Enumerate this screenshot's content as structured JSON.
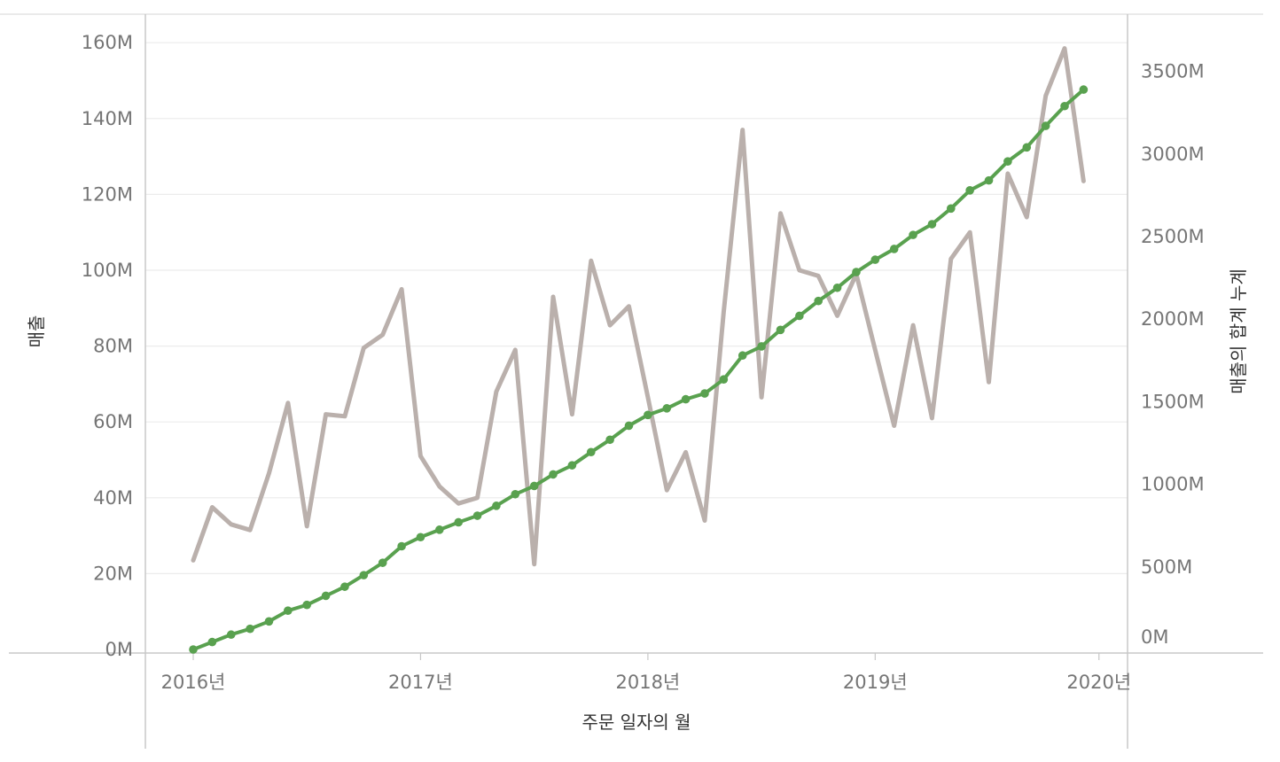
{
  "chart_data": {
    "type": "line",
    "x_axis": {
      "title": "주문 일자의 월",
      "tick_labels": [
        "2016년",
        "2017년",
        "2018년",
        "2019년",
        "2020년"
      ]
    },
    "y_axis_left": {
      "title": "매출",
      "range": [
        0,
        160
      ],
      "ticks": [
        0,
        20,
        40,
        60,
        80,
        100,
        120,
        140,
        160
      ],
      "tick_labels": [
        "0M",
        "20M",
        "40M",
        "60M",
        "80M",
        "100M",
        "120M",
        "140M",
        "160M"
      ]
    },
    "y_axis_right": {
      "title": "매출의 합계 누계",
      "range": [
        0,
        3500
      ],
      "ticks": [
        0,
        500,
        1000,
        1500,
        2000,
        2500,
        3000,
        3500
      ],
      "tick_labels": [
        "0M",
        "500M",
        "1000M",
        "1500M",
        "2000M",
        "2500M",
        "3000M",
        "3500M"
      ]
    },
    "grid": true,
    "x": [
      "2016-01",
      "2016-02",
      "2016-03",
      "2016-04",
      "2016-05",
      "2016-06",
      "2016-07",
      "2016-08",
      "2016-09",
      "2016-10",
      "2016-11",
      "2016-12",
      "2017-01",
      "2017-02",
      "2017-03",
      "2017-04",
      "2017-05",
      "2017-06",
      "2017-07",
      "2017-08",
      "2017-09",
      "2017-10",
      "2017-11",
      "2017-12",
      "2018-01",
      "2018-02",
      "2018-03",
      "2018-04",
      "2018-05",
      "2018-06",
      "2018-07",
      "2018-08",
      "2018-09",
      "2018-10",
      "2018-11",
      "2018-12",
      "2019-01",
      "2019-02",
      "2019-03",
      "2019-04",
      "2019-05",
      "2019-06",
      "2019-07",
      "2019-08",
      "2019-09",
      "2019-10",
      "2019-11",
      "2019-12"
    ],
    "series": [
      {
        "axis": "left",
        "color": "#bab0ac",
        "values": [
          23.5,
          37.5,
          33,
          31.5,
          46.5,
          65,
          32.5,
          62,
          61.5,
          79.5,
          83,
          95,
          51,
          43,
          38.5,
          40,
          68,
          79,
          22.5,
          93,
          62,
          102.5,
          85.5,
          90.5,
          66.5,
          42,
          52,
          34,
          89,
          137,
          66.5,
          115,
          100,
          98.5,
          88,
          99,
          79,
          59,
          85.5,
          61,
          103,
          110,
          70.5,
          125.5,
          114,
          146,
          158.5,
          123.5
        ]
      },
      {
        "axis": "right",
        "color": "#59a14f",
        "markers": true,
        "values": [
          0,
          45,
          90,
          125,
          170,
          235,
          270,
          325,
          380,
          450,
          525,
          625,
          680,
          725,
          770,
          810,
          870,
          940,
          990,
          1060,
          1115,
          1195,
          1270,
          1355,
          1420,
          1460,
          1515,
          1550,
          1635,
          1780,
          1835,
          1935,
          2020,
          2110,
          2190,
          2285,
          2360,
          2425,
          2510,
          2575,
          2670,
          2780,
          2840,
          2955,
          3040,
          3170,
          3290,
          3390
        ]
      }
    ]
  }
}
